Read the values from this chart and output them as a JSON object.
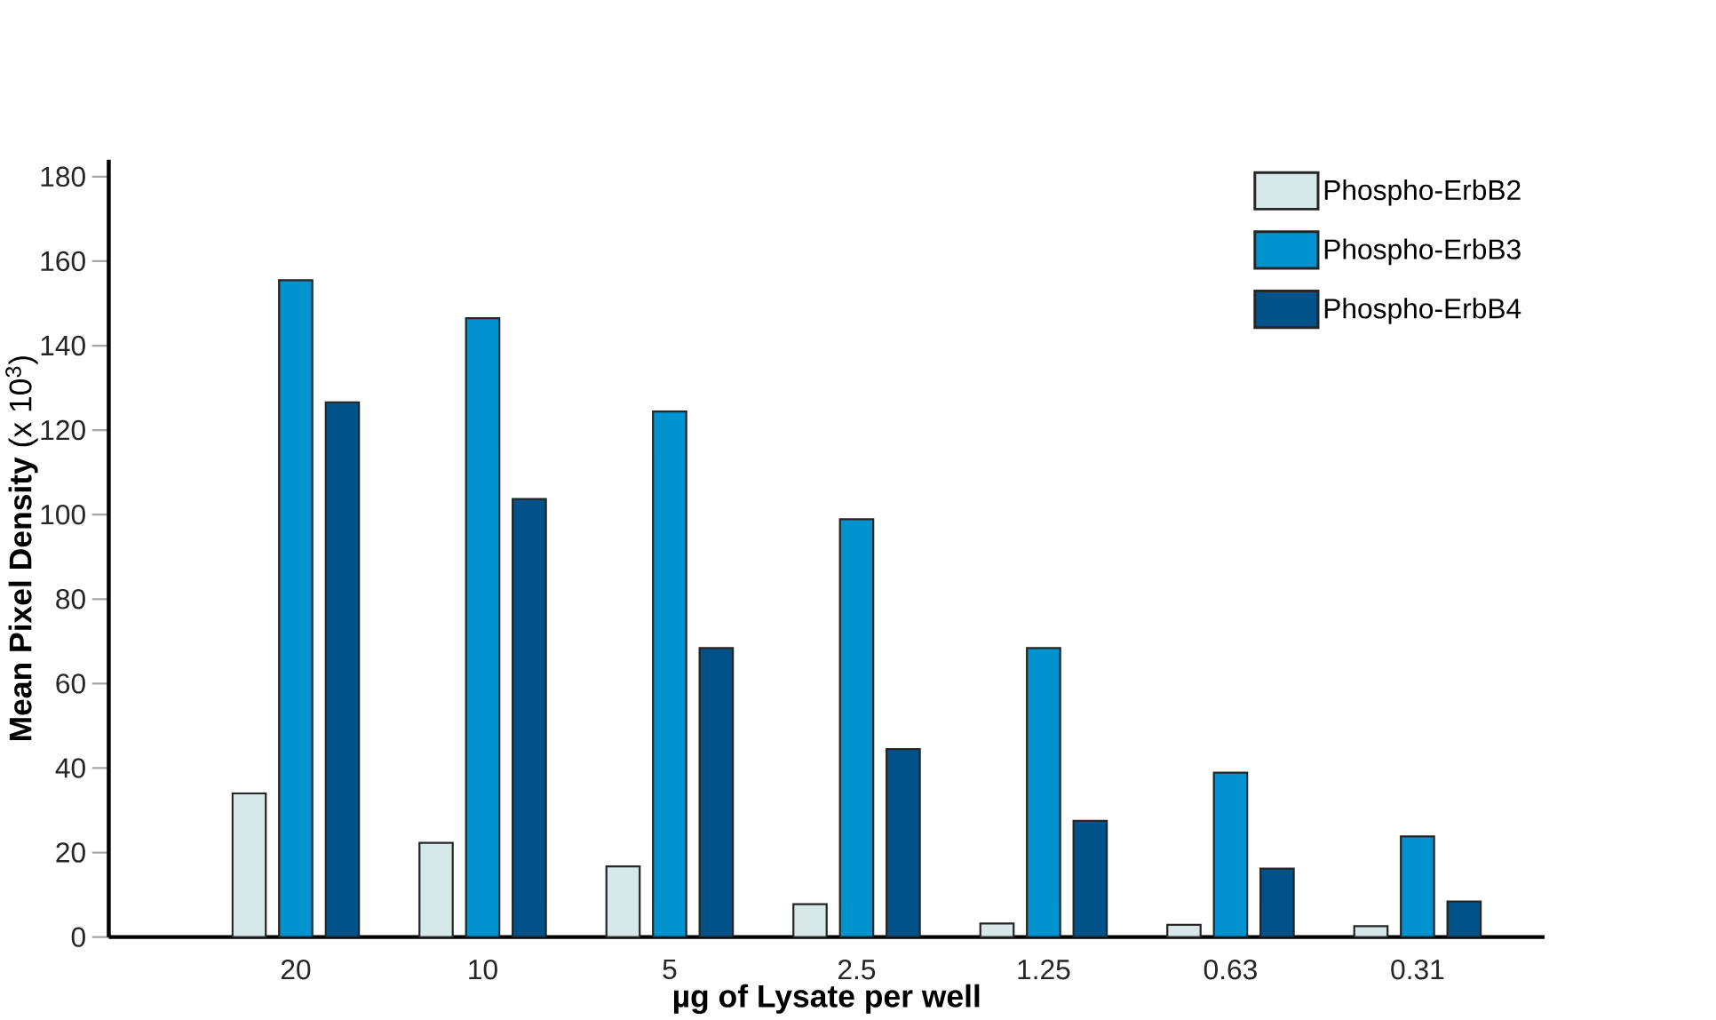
{
  "chart_data": {
    "type": "bar",
    "xlabel": "µg of Lysate per well",
    "ylabel": "**Mean Pixel Density** (x 10$^{3}$)",
    "categories": [
      "20",
      "10",
      "5",
      "2.5",
      "1.25",
      "0.63",
      "0.31"
    ],
    "series": [
      {
        "name": "Phospho-ErbB2",
        "color": "#d6e8e8",
        "values": [
          34,
          22.3,
          16.7,
          7.8,
          3.2,
          2.9,
          2.6
        ]
      },
      {
        "name": "Phospho-ErbB3",
        "color": "#0093d0",
        "values": [
          155.5,
          146.5,
          124.4,
          98.9,
          68.4,
          38.9,
          23.8
        ]
      },
      {
        "name": "Phospho-ErbB4",
        "color": "#005288",
        "values": [
          126.6,
          103.7,
          68.4,
          44.5,
          27.5,
          16.2,
          8.4
        ]
      }
    ],
    "ylim": [
      0,
      184
    ],
    "yticks": [
      0,
      20,
      40,
      60,
      80,
      100,
      120,
      140,
      160,
      180
    ],
    "legend": "top right",
    "grid": false
  }
}
